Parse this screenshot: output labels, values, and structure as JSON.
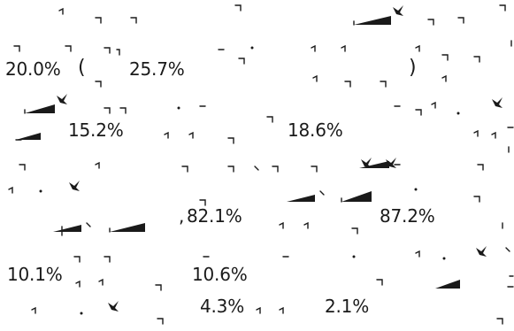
{
  "values": {
    "v1": "20.0%",
    "v2": "25.7%",
    "v3": "15.2%",
    "v4": "18.6%",
    "v5": "82.1%",
    "v6": "87.2%",
    "v7": "10.1%",
    "v8": "10.6%",
    "v9": "4.3%",
    "v10": "2.1%"
  },
  "punctuation": {
    "open_paren": "(",
    "close_paren": ")",
    "comma": ","
  },
  "colors": {
    "text": "#1a1a1a",
    "background": "#ffffff"
  }
}
